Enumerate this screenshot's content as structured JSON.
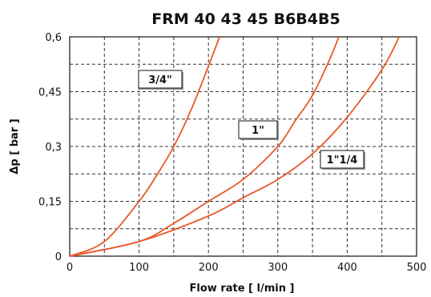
{
  "chart_data": {
    "type": "line",
    "title": "FRM 40 43 45 B6B4B5",
    "xlabel": "Flow rate [ l/min ]",
    "ylabel": "Δp [ bar ]",
    "xlim": [
      0,
      500
    ],
    "ylim": [
      0,
      0.6
    ],
    "x_ticks": [
      0,
      100,
      200,
      300,
      400,
      500
    ],
    "x_tick_labels": [
      "0",
      "100",
      "200",
      "300",
      "400",
      "500"
    ],
    "y_ticks": [
      0,
      0.15,
      0.3,
      0.45,
      0.6
    ],
    "y_tick_labels": [
      "0",
      "0,15",
      "0,3",
      "0,45",
      "0,6"
    ],
    "grid": true,
    "line_color": "#e8582a",
    "series": [
      {
        "name": "3/4\"",
        "x": [
          0,
          50,
          100,
          125,
          150,
          175,
          200,
          210,
          216
        ],
        "y": [
          0,
          0.04,
          0.15,
          0.22,
          0.3,
          0.4,
          0.52,
          0.57,
          0.6
        ]
      },
      {
        "name": "1\"",
        "x": [
          0,
          100,
          150,
          200,
          250,
          300,
          325,
          350,
          375,
          388
        ],
        "y": [
          0,
          0.04,
          0.09,
          0.15,
          0.21,
          0.3,
          0.37,
          0.44,
          0.54,
          0.6
        ]
      },
      {
        "name": "1\"1/4",
        "x": [
          0,
          100,
          200,
          250,
          300,
          350,
          400,
          450,
          475
        ],
        "y": [
          0,
          0.04,
          0.11,
          0.16,
          0.21,
          0.28,
          0.38,
          0.51,
          0.6
        ]
      }
    ],
    "labels": [
      {
        "text": "3/4\"",
        "series": 0
      },
      {
        "text": "1\"",
        "series": 1
      },
      {
        "text": "1\"1/4",
        "series": 2
      }
    ]
  }
}
